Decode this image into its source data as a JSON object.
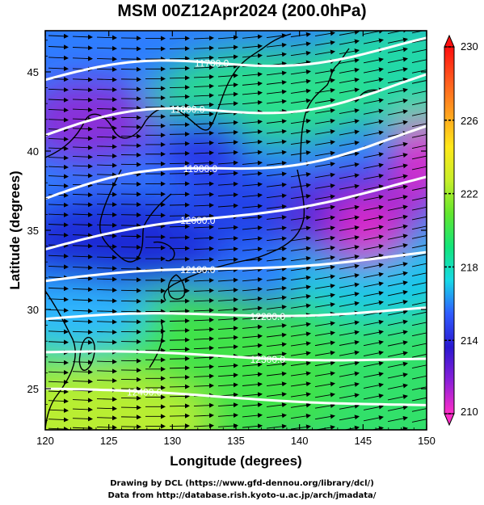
{
  "title": "MSM 00Z12Apr2024 (200.0hPa)",
  "x_axis": {
    "label": "Longitude (degrees)",
    "min": 120,
    "max": 150,
    "ticks": [
      "120",
      "125",
      "130",
      "135",
      "140",
      "145",
      "150"
    ],
    "tick_values": [
      120,
      125,
      130,
      135,
      140,
      145,
      150
    ]
  },
  "y_axis": {
    "label": "Latitude  (degrees)",
    "min": 22.4,
    "max": 47.6,
    "ticks": [
      "25",
      "30",
      "35",
      "40",
      "45"
    ],
    "tick_values": [
      25,
      30,
      35,
      40,
      45
    ]
  },
  "colorbar": {
    "min": 210,
    "max": 230,
    "ticks": [
      "210",
      "214",
      "218",
      "222",
      "226",
      "230"
    ],
    "tick_values": [
      210,
      214,
      218,
      222,
      226,
      230
    ],
    "colors": [
      "#ff2ec8",
      "#8a1fd8",
      "#2a18d0",
      "#2f5cff",
      "#17d9e6",
      "#12e57a",
      "#62e62e",
      "#c7ee2a",
      "#ffe81a",
      "#ffa01e",
      "#ff5a1e",
      "#ff0f0f"
    ]
  },
  "contours": [
    {
      "label": "11700.0",
      "lat_start": 44.5,
      "lat_end": 46.8,
      "label_lon": 133.1,
      "wave": 1.2
    },
    {
      "label": "11800.0",
      "lat_start": 41.0,
      "lat_end": 44.4,
      "label_lon": 131.2,
      "wave": 1.5
    },
    {
      "label": "11900.0",
      "lat_start": 37.0,
      "lat_end": 41.2,
      "label_lon": 132.2,
      "wave": 1.3
    },
    {
      "label": "12000.0",
      "lat_start": 33.8,
      "lat_end": 38.2,
      "label_lon": 132.0,
      "wave": 0.6
    },
    {
      "label": "12100.0",
      "lat_start": 31.8,
      "lat_end": 33.5,
      "label_lon": 132.0,
      "wave": 0.4
    },
    {
      "label": "12200.0",
      "lat_start": 29.4,
      "lat_end": 30.0,
      "label_lon": 137.5,
      "wave": 0.4
    },
    {
      "label": "12300.0",
      "lat_start": 27.3,
      "lat_end": 26.8,
      "label_lon": 137.5,
      "wave": 0.3
    },
    {
      "label": "12400.0",
      "lat_start": 25.0,
      "lat_end": 23.9,
      "label_lon": 127.8,
      "wave": 0.2
    }
  ],
  "credits": {
    "line1": "Drawing by DCL (https://www.gfd-dennou.org/library/dcl/)",
    "line2": "Data from http://database.rish.kyoto-u.ac.jp/arch/jmadata/"
  }
}
